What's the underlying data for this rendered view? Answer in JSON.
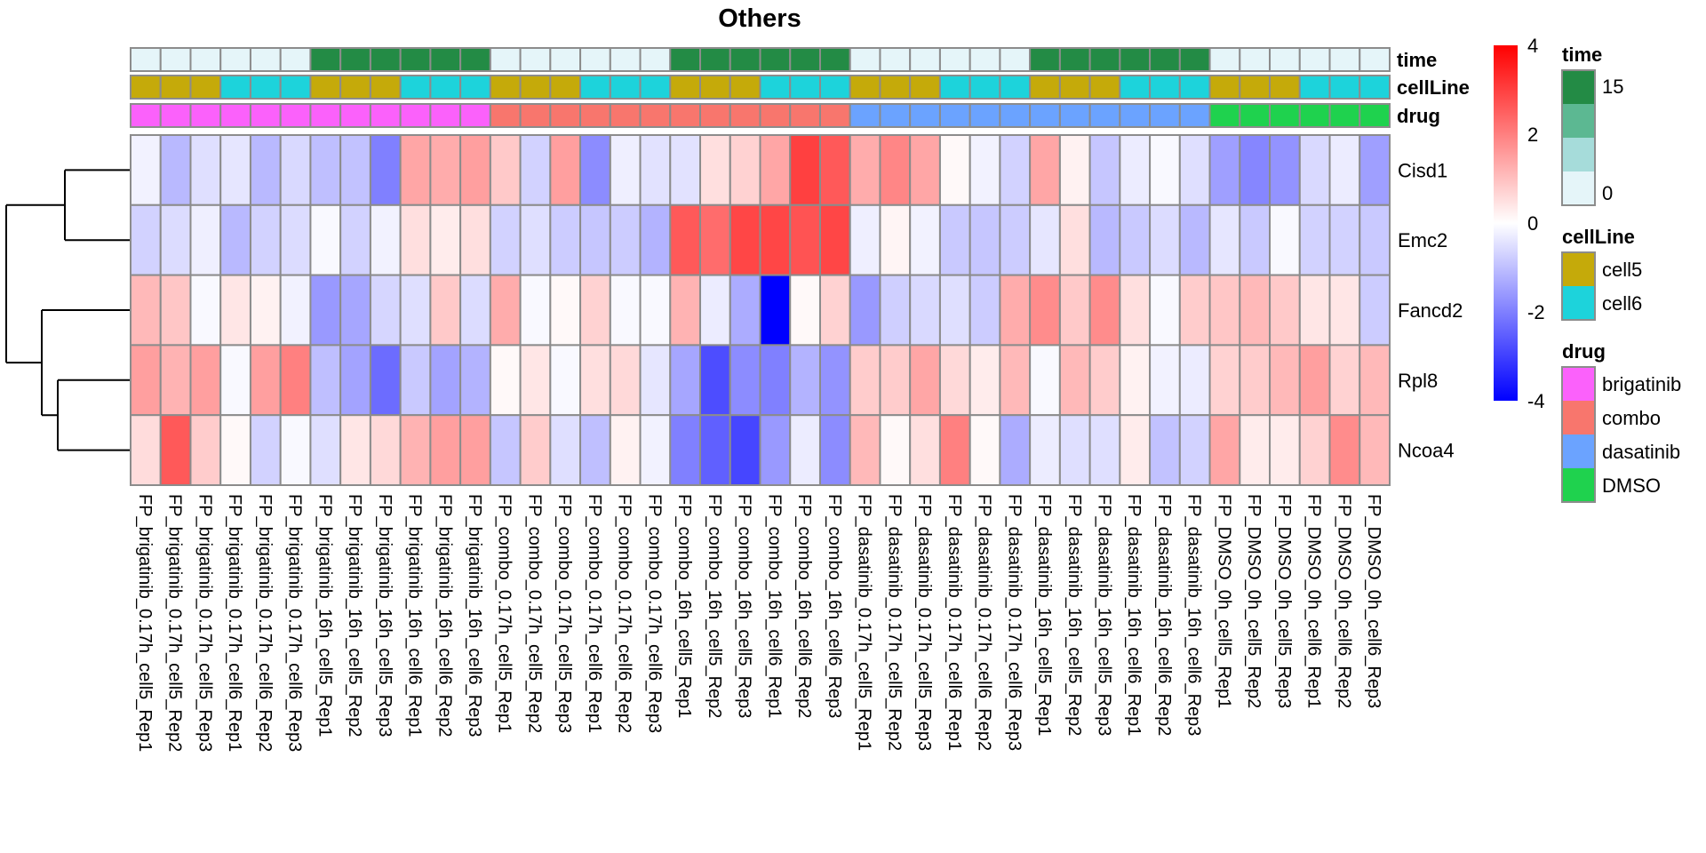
{
  "chart_data": {
    "type": "heatmap",
    "title": "Others",
    "rows": [
      "Cisd1",
      "Emc2",
      "Fancd2",
      "Rpl8",
      "Ncoa4"
    ],
    "columns": [
      "FP_brigatinib_0.17h_cell5_Rep1",
      "FP_brigatinib_0.17h_cell5_Rep2",
      "FP_brigatinib_0.17h_cell5_Rep3",
      "FP_brigatinib_0.17h_cell6_Rep1",
      "FP_brigatinib_0.17h_cell6_Rep2",
      "FP_brigatinib_0.17h_cell6_Rep3",
      "FP_brigatinib_16h_cell5_Rep1",
      "FP_brigatinib_16h_cell5_Rep2",
      "FP_brigatinib_16h_cell5_Rep3",
      "FP_brigatinib_16h_cell6_Rep1",
      "FP_brigatinib_16h_cell6_Rep2",
      "FP_brigatinib_16h_cell6_Rep3",
      "FP_combo_0.17h_cell5_Rep1",
      "FP_combo_0.17h_cell5_Rep2",
      "FP_combo_0.17h_cell5_Rep3",
      "FP_combo_0.17h_cell6_Rep1",
      "FP_combo_0.17h_cell6_Rep2",
      "FP_combo_0.17h_cell6_Rep3",
      "FP_combo_16h_cell5_Rep1",
      "FP_combo_16h_cell5_Rep2",
      "FP_combo_16h_cell5_Rep3",
      "FP_combo_16h_cell6_Rep1",
      "FP_combo_16h_cell6_Rep2",
      "FP_combo_16h_cell6_Rep3",
      "FP_dasatinib_0.17h_cell5_Rep1",
      "FP_dasatinib_0.17h_cell5_Rep2",
      "FP_dasatinib_0.17h_cell5_Rep3",
      "FP_dasatinib_0.17h_cell6_Rep1",
      "FP_dasatinib_0.17h_cell6_Rep2",
      "FP_dasatinib_0.17h_cell6_Rep3",
      "FP_dasatinib_16h_cell5_Rep1",
      "FP_dasatinib_16h_cell5_Rep2",
      "FP_dasatinib_16h_cell5_Rep3",
      "FP_dasatinib_16h_cell6_Rep1",
      "FP_dasatinib_16h_cell6_Rep2",
      "FP_dasatinib_16h_cell6_Rep3",
      "FP_DMSO_0h_cell5_Rep1",
      "FP_DMSO_0h_cell5_Rep2",
      "FP_DMSO_0h_cell5_Rep3",
      "FP_DMSO_0h_cell6_Rep1",
      "FP_DMSO_0h_cell6_Rep2",
      "FP_DMSO_0h_cell6_Rep3"
    ],
    "values": [
      [
        -0.2,
        -1.1,
        -0.5,
        -0.4,
        -1.1,
        -0.6,
        -1.0,
        -0.95,
        -2.0,
        1.4,
        1.3,
        1.5,
        0.85,
        -0.7,
        1.5,
        -1.8,
        -0.25,
        -0.45,
        -0.45,
        0.5,
        0.7,
        1.4,
        3.0,
        2.6,
        1.3,
        1.9,
        1.4,
        0.1,
        -0.2,
        -0.7,
        1.4,
        0.2,
        -0.9,
        -0.3,
        -0.1,
        -0.5,
        -1.5,
        -1.9,
        -1.7,
        -0.6,
        -0.3,
        -1.5
      ],
      [
        -0.7,
        -0.55,
        -0.25,
        -1.1,
        -0.7,
        -0.55,
        -0.1,
        -0.7,
        -0.2,
        0.5,
        0.3,
        0.5,
        -0.7,
        -0.5,
        -0.8,
        -0.9,
        -0.8,
        -1.2,
        2.6,
        2.3,
        2.9,
        2.9,
        2.7,
        2.9,
        -0.25,
        0.15,
        -0.2,
        -0.85,
        -0.9,
        -0.8,
        -0.4,
        0.5,
        -1.1,
        -0.85,
        -0.55,
        -1.1,
        -0.4,
        -0.85,
        -0.1,
        -0.7,
        -0.7,
        -0.85
      ],
      [
        1.1,
        0.9,
        -0.1,
        0.4,
        0.2,
        -0.2,
        -1.6,
        -1.4,
        -0.65,
        -0.5,
        0.85,
        -0.55,
        1.3,
        -0.1,
        0.1,
        0.7,
        -0.1,
        -0.1,
        1.2,
        -0.3,
        -1.3,
        -4.0,
        0.1,
        0.7,
        -1.6,
        -0.75,
        -0.6,
        -0.5,
        -0.8,
        1.3,
        1.8,
        0.85,
        1.8,
        0.5,
        -0.1,
        0.8,
        0.9,
        1.1,
        0.85,
        0.4,
        0.4,
        -0.8
      ],
      [
        1.5,
        1.2,
        1.5,
        -0.1,
        1.5,
        2.0,
        -1.0,
        -1.45,
        -2.3,
        -0.85,
        -1.45,
        -1.2,
        0.1,
        0.4,
        -0.1,
        0.5,
        0.6,
        -0.4,
        -1.4,
        -2.8,
        -1.8,
        -2.0,
        -1.2,
        -1.7,
        0.8,
        0.8,
        1.4,
        0.6,
        0.3,
        1.1,
        -0.1,
        1.1,
        0.8,
        0.2,
        -0.2,
        -0.3,
        0.7,
        0.8,
        1.1,
        1.5,
        0.7,
        1.1
      ],
      [
        0.55,
        2.6,
        0.8,
        0.1,
        -0.7,
        -0.1,
        -0.5,
        0.4,
        0.6,
        1.2,
        1.5,
        1.5,
        -0.9,
        0.8,
        -0.5,
        -1.0,
        0.2,
        -0.2,
        -2.0,
        -2.5,
        -2.9,
        -1.6,
        -0.3,
        -1.8,
        1.1,
        0.1,
        0.5,
        2.0,
        0.1,
        -1.3,
        -0.3,
        -0.5,
        -0.5,
        0.3,
        -0.95,
        -0.7,
        1.4,
        0.3,
        0.3,
        0.7,
        1.8,
        1.1
      ]
    ],
    "color_scale": {
      "min": -4,
      "mid": 0,
      "max": 4,
      "low_color": "#0000FF",
      "mid_color": "#FFFFFF",
      "high_color": "#FF0000",
      "ticks": [
        "4",
        "2",
        "0",
        "-2",
        "-4"
      ]
    },
    "row_dendrogram": {
      "merges": [
        {
          "left": "Cisd1",
          "right": "Emc2",
          "height": 0.55
        },
        {
          "left": "Rpl8",
          "right": "Ncoa4",
          "height": 0.6
        },
        {
          "left": "Fancd2",
          "right": "Rpl8+Ncoa4",
          "height": 0.7
        },
        {
          "left": "Cisd1+Emc2",
          "right": "Fancd2+Rpl8+Ncoa4",
          "height": 1.0
        }
      ]
    },
    "annotations": [
      {
        "name": "time",
        "values": [
          0,
          0,
          0,
          0,
          0,
          0,
          16,
          16,
          16,
          16,
          16,
          16,
          0,
          0,
          0,
          0,
          0,
          0,
          16,
          16,
          16,
          16,
          16,
          16,
          0,
          0,
          0,
          0,
          0,
          0,
          16,
          16,
          16,
          16,
          16,
          16,
          0,
          0,
          0,
          0,
          0,
          0
        ],
        "colors": {
          "low": "#E5F5F9",
          "high": "#238B45"
        }
      },
      {
        "name": "cellLine",
        "values": [
          "cell5",
          "cell5",
          "cell5",
          "cell6",
          "cell6",
          "cell6",
          "cell5",
          "cell5",
          "cell5",
          "cell6",
          "cell6",
          "cell6",
          "cell5",
          "cell5",
          "cell5",
          "cell6",
          "cell6",
          "cell6",
          "cell5",
          "cell5",
          "cell5",
          "cell6",
          "cell6",
          "cell6",
          "cell5",
          "cell5",
          "cell5",
          "cell6",
          "cell6",
          "cell6",
          "cell5",
          "cell5",
          "cell5",
          "cell6",
          "cell6",
          "cell6",
          "cell5",
          "cell5",
          "cell5",
          "cell6",
          "cell6",
          "cell6"
        ],
        "colors": {
          "cell5": "#C5AA0A",
          "cell6": "#1DD3DB"
        }
      },
      {
        "name": "drug",
        "values": [
          "brigatinib",
          "brigatinib",
          "brigatinib",
          "brigatinib",
          "brigatinib",
          "brigatinib",
          "brigatinib",
          "brigatinib",
          "brigatinib",
          "brigatinib",
          "brigatinib",
          "brigatinib",
          "combo",
          "combo",
          "combo",
          "combo",
          "combo",
          "combo",
          "combo",
          "combo",
          "combo",
          "combo",
          "combo",
          "combo",
          "dasatinib",
          "dasatinib",
          "dasatinib",
          "dasatinib",
          "dasatinib",
          "dasatinib",
          "dasatinib",
          "dasatinib",
          "dasatinib",
          "dasatinib",
          "dasatinib",
          "dasatinib",
          "DMSO",
          "DMSO",
          "DMSO",
          "DMSO",
          "DMSO",
          "DMSO"
        ],
        "colors": {
          "brigatinib": "#FB61FB",
          "combo": "#F8766D",
          "dasatinib": "#6BA3FF",
          "DMSO": "#1FD24E"
        }
      }
    ],
    "legends": [
      {
        "title": "time",
        "type": "continuous",
        "labels": [
          "15",
          "0"
        ],
        "swatches": [
          "#238B45",
          "#5CB892",
          "#A6DCDA",
          "#E5F5F9"
        ]
      },
      {
        "title": "cellLine",
        "type": "discrete",
        "labels": [
          "cell5",
          "cell6"
        ],
        "swatches": [
          "#C5AA0A",
          "#1DD3DB"
        ]
      },
      {
        "title": "drug",
        "type": "discrete",
        "labels": [
          "brigatinib",
          "combo",
          "dasatinib",
          "DMSO"
        ],
        "swatches": [
          "#FB61FB",
          "#F8766D",
          "#6BA3FF",
          "#1FD24E"
        ]
      }
    ],
    "grid": true,
    "cell_border_color": "#8C8C8C"
  }
}
